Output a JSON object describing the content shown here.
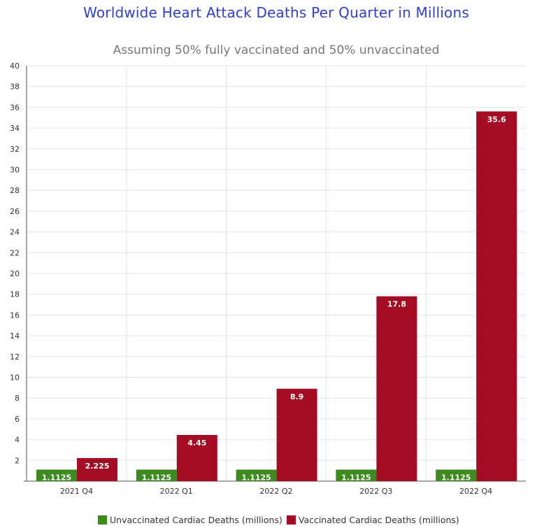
{
  "chart_data": {
    "type": "bar",
    "title": "Worldwide Heart Attack Deaths Per Quarter in Millions",
    "subtitle": "Assuming 50% fully vaccinated and 50% unvaccinated",
    "categories": [
      "2021 Q4",
      "2022 Q1",
      "2022 Q2",
      "2022 Q3",
      "2022 Q4"
    ],
    "series": [
      {
        "name": "Unvaccinated Cardiac Deaths (millions)",
        "color": "#3d8b1e",
        "values": [
          1.1125,
          1.1125,
          1.1125,
          1.1125,
          1.1125
        ],
        "labels": [
          "1.1125",
          "1.1125",
          "1.1125",
          "1.1125",
          "1.1125"
        ]
      },
      {
        "name": "Vaccinated Cardiac Deaths (millions)",
        "color": "#a30c23",
        "values": [
          2.225,
          4.45,
          8.9,
          17.8,
          35.6
        ],
        "labels": [
          "2.225",
          "4.45",
          "8.9",
          "17.8",
          "35.6"
        ]
      }
    ],
    "ylim": [
      0,
      40
    ],
    "yticks": [
      "2",
      "4",
      "6",
      "8",
      "10",
      "12",
      "14",
      "16",
      "18",
      "20",
      "22",
      "24",
      "26",
      "28",
      "30",
      "32",
      "34",
      "36",
      "38",
      "40"
    ],
    "grid": true,
    "legend_position": "bottom-center"
  }
}
